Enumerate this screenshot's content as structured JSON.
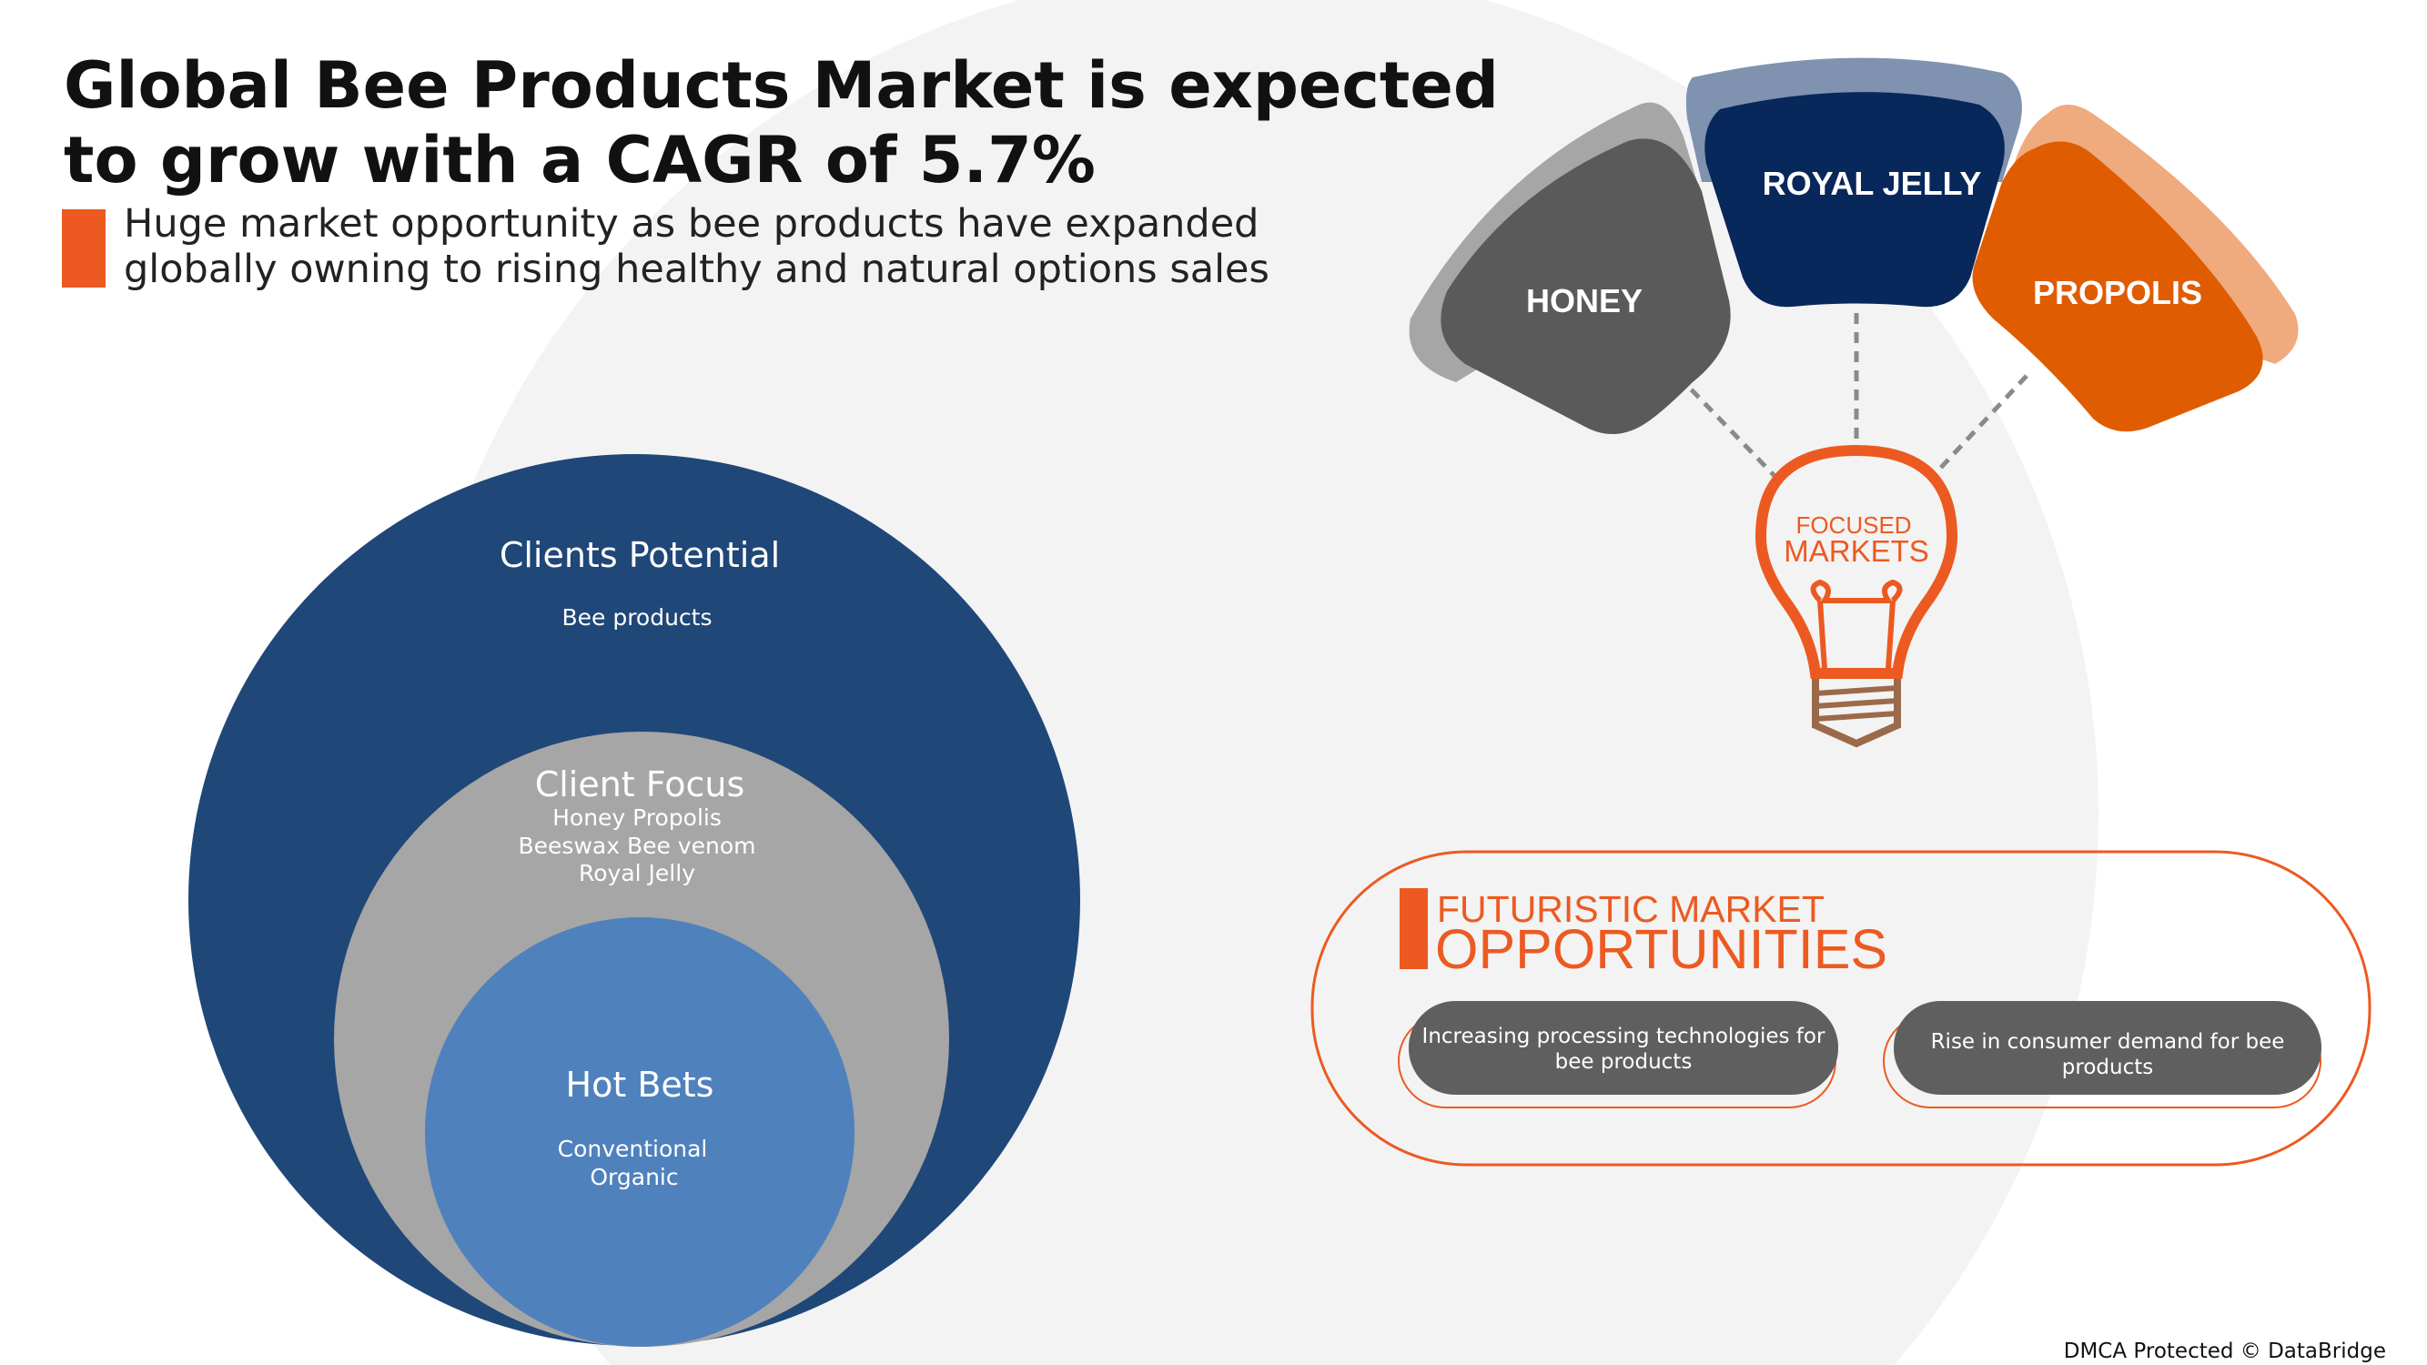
{
  "header": {
    "title_line1": "Global Bee Products Market is expected",
    "title_line2": "to grow with a CAGR of 5.7%",
    "subtitle_line1": "Huge market opportunity as bee products have expanded",
    "subtitle_line2": "globally owning to rising healthy and natural options sales"
  },
  "circles": {
    "outer": {
      "title": "Clients Potential",
      "items": [
        "Bee products"
      ],
      "color": "#1f4778"
    },
    "middle": {
      "title": "Client Focus",
      "items": [
        "Honey Propolis",
        "Beeswax Bee venom",
        "Royal Jelly"
      ],
      "color": "#a6a6a6"
    },
    "inner": {
      "title": "Hot Bets",
      "items": [
        "Conventional",
        "Organic"
      ],
      "color": "#4f81bd"
    }
  },
  "petals": [
    {
      "label": "HONEY",
      "color": "#5a5a5a"
    },
    {
      "label": "ROYAL JELLY",
      "color": "#08275a"
    },
    {
      "label": "PROPOLIS",
      "color": "#e05c00"
    }
  ],
  "bulb": {
    "line1": "FOCUSED",
    "line2": "MARKETS",
    "icon": "lightbulb-icon",
    "color": "#ec5a21"
  },
  "opportunities": {
    "title_line1": "FUTURISTIC MARKET",
    "title_line2": "OPPORTUNITIES",
    "items": [
      {
        "line1": "Increasing processing technologies for",
        "line2": "bee products"
      },
      {
        "line1": "Rise in consumer demand for bee",
        "line2": "products"
      }
    ]
  },
  "footer": {
    "copyright": "DMCA Protected © DataBridge"
  },
  "colors": {
    "accent": "#ec5a21",
    "background_circle": "#f3f3f3"
  }
}
